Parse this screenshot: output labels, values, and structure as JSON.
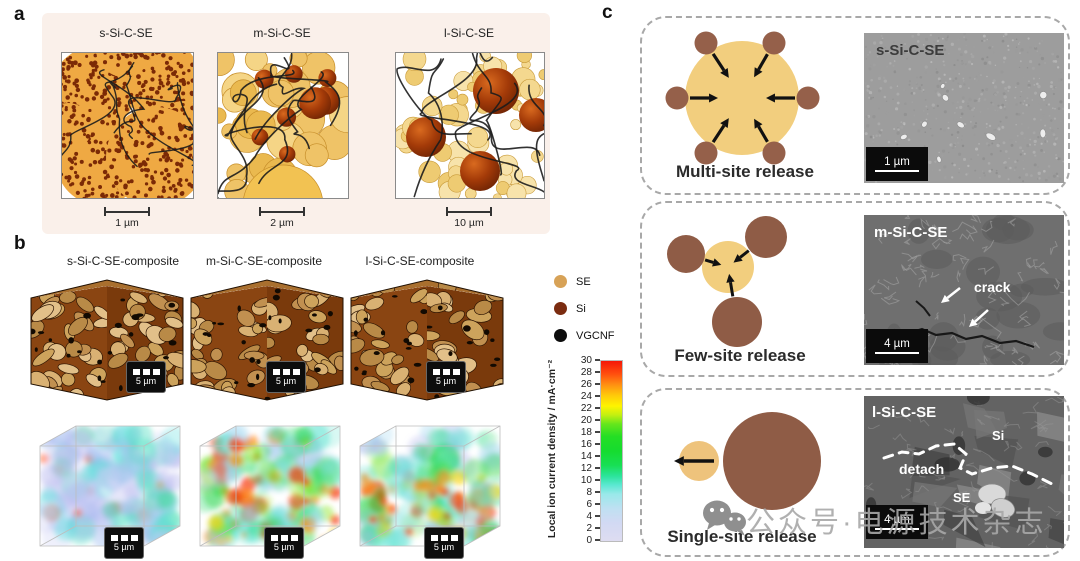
{
  "figure": {
    "panel_a": {
      "label": "a",
      "items": [
        {
          "title": "s-Si-C-SE",
          "scale": "1 µm"
        },
        {
          "title": "m-Si-C-SE",
          "scale": "2 µm"
        },
        {
          "title": "l-Si-C-SE",
          "scale": "10 µm"
        }
      ]
    },
    "panel_b": {
      "label": "b",
      "items": [
        {
          "title": "s-Si-C-SE-composite"
        },
        {
          "title": "m-Si-C-SE-composite"
        },
        {
          "title": "l-Si-C-SE-composite"
        }
      ],
      "cube_scale_label": "5 µm",
      "legend": [
        {
          "label": "SE",
          "color": "#d7a257"
        },
        {
          "label": "Si",
          "color": "#7b2c10"
        },
        {
          "label": "VGCNF",
          "color": "#0d0d0d"
        }
      ],
      "colorbar": {
        "axis_label": "Local ion current density / mA·cm⁻²",
        "min": 0,
        "max": 30,
        "step": 2,
        "ticks": [
          30,
          28,
          26,
          24,
          22,
          20,
          18,
          16,
          14,
          12,
          10,
          8,
          6,
          4,
          2,
          0
        ]
      }
    },
    "panel_c": {
      "label": "c",
      "rows": [
        {
          "release_label": "Multi-site release",
          "sem_label": "s-Si-C-SE",
          "sem_scale": "1 µm",
          "annotations": []
        },
        {
          "release_label": "Few-site release",
          "sem_label": "m-Si-C-SE",
          "sem_scale": "4 µm",
          "annotations": [
            "crack"
          ]
        },
        {
          "release_label": "Single-site release",
          "sem_label": "l-Si-C-SE",
          "sem_scale": "4 µm",
          "annotations": [
            "Si",
            "detach",
            "SE"
          ]
        }
      ]
    },
    "watermark": {
      "text": "公众号·电源技术杂志"
    }
  }
}
